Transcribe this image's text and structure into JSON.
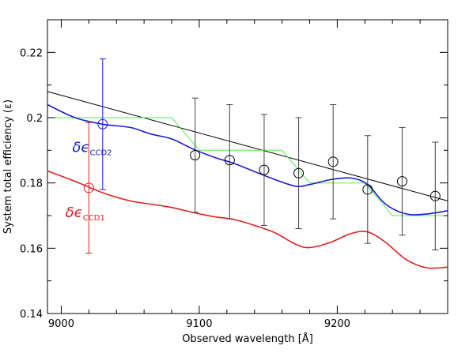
{
  "chart_data": {
    "type": "scatter",
    "title": "",
    "xlabel": "Observed wavelength [Å]",
    "ylabel": "System total efficiency (ε)",
    "xlim": [
      8990,
      9280
    ],
    "ylim": [
      0.14,
      0.23
    ],
    "x_ticks": [
      9000,
      9100,
      9200
    ],
    "x_tick_labels": [
      "9000",
      "9100",
      "9200"
    ],
    "y_ticks": [
      0.14,
      0.16,
      0.18,
      0.2,
      0.22
    ],
    "y_tick_labels": [
      "0.14",
      "0.16",
      "0.18",
      "0.2",
      "0.22"
    ],
    "grid": false,
    "colors": {
      "black": "#000000",
      "green": "#55ee55",
      "blue": "#1a1ad6",
      "red": "#e02020",
      "errorbar": "#444444"
    },
    "series": [
      {
        "kind": "points_with_errorbars",
        "color": "black",
        "points": [
          {
            "x": 9097,
            "y": 0.1885,
            "ylo": 0.171,
            "yhi": 0.206
          },
          {
            "x": 9122,
            "y": 0.187,
            "ylo": 0.169,
            "yhi": 0.204
          },
          {
            "x": 9147,
            "y": 0.184,
            "ylo": 0.167,
            "yhi": 0.201
          },
          {
            "x": 9172,
            "y": 0.183,
            "ylo": 0.166,
            "yhi": 0.2
          },
          {
            "x": 9197,
            "y": 0.1865,
            "ylo": 0.169,
            "yhi": 0.204
          },
          {
            "x": 9222,
            "y": 0.178,
            "ylo": 0.1615,
            "yhi": 0.1945
          },
          {
            "x": 9247,
            "y": 0.1805,
            "ylo": 0.164,
            "yhi": 0.197
          },
          {
            "x": 9271,
            "y": 0.176,
            "ylo": 0.1595,
            "yhi": 0.1925
          }
        ]
      },
      {
        "kind": "points_with_errorbars",
        "color": "blue",
        "points": [
          {
            "x": 9030,
            "y": 0.198,
            "ylo": 0.178,
            "yhi": 0.218
          }
        ]
      },
      {
        "kind": "points_with_errorbars",
        "color": "red",
        "points": [
          {
            "x": 9020,
            "y": 0.1785,
            "ylo": 0.1585,
            "yhi": 0.1985
          }
        ]
      },
      {
        "kind": "line",
        "color": "black",
        "x": [
          8990,
          9280
        ],
        "y": [
          0.208,
          0.1745
        ]
      },
      {
        "kind": "step",
        "color": "green",
        "x": [
          8990,
          9080,
          9100,
          9160,
          9180,
          9220,
          9240,
          9280
        ],
        "y": [
          0.2,
          0.2,
          0.19,
          0.19,
          0.18,
          0.18,
          0.17,
          0.17
        ]
      },
      {
        "kind": "curve",
        "color": "blue",
        "x": [
          8990,
          9010,
          9030,
          9050,
          9065,
          9080,
          9095,
          9110,
          9125,
          9140,
          9155,
          9170,
          9180,
          9195,
          9210,
          9222,
          9235,
          9250,
          9265,
          9280
        ],
        "y": [
          0.204,
          0.2,
          0.198,
          0.197,
          0.195,
          0.1935,
          0.1905,
          0.188,
          0.186,
          0.1835,
          0.181,
          0.179,
          0.1795,
          0.181,
          0.1815,
          0.1795,
          0.1735,
          0.1705,
          0.1705,
          0.1715
        ]
      },
      {
        "kind": "curve",
        "color": "red",
        "x": [
          8990,
          9010,
          9030,
          9050,
          9065,
          9080,
          9095,
          9110,
          9125,
          9140,
          9155,
          9170,
          9180,
          9195,
          9210,
          9222,
          9235,
          9250,
          9265,
          9280
        ],
        "y": [
          0.1837,
          0.1805,
          0.177,
          0.1745,
          0.1735,
          0.1725,
          0.171,
          0.1697,
          0.1688,
          0.167,
          0.1647,
          0.1612,
          0.1602,
          0.1618,
          0.1645,
          0.165,
          0.1618,
          0.1565,
          0.154,
          0.1542
        ]
      }
    ],
    "annotations": [
      {
        "name": "ccd2",
        "color": "blue",
        "symbol": "δϵ",
        "subscript": "CCD2",
        "x": 9008,
        "y": 0.1895
      },
      {
        "name": "ccd1",
        "color": "red",
        "symbol": "δϵ",
        "subscript": "CCD1",
        "x": 9003,
        "y": 0.1695
      }
    ]
  }
}
